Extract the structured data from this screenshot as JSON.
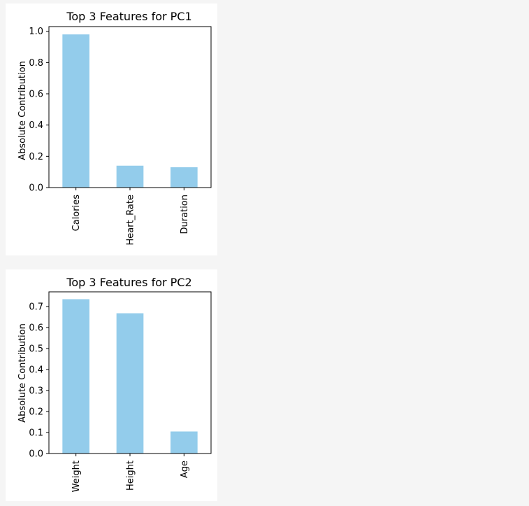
{
  "chart_data": [
    {
      "type": "bar",
      "title": "Top 3 Features for PC1",
      "ylabel": "Absolute Contribution",
      "xlabel": "",
      "categories": [
        "Calories",
        "Heart_Rate",
        "Duration"
      ],
      "values": [
        0.98,
        0.14,
        0.13
      ],
      "ylim": [
        0,
        1.03
      ],
      "yticks": [
        "0.0",
        "0.2",
        "0.4",
        "0.6",
        "0.8",
        "1.0"
      ],
      "ytick_values": [
        0,
        0.2,
        0.4,
        0.6,
        0.8,
        1.0
      ],
      "grid": false,
      "bar_color": "#93cceb"
    },
    {
      "type": "bar",
      "title": "Top 3 Features for PC2",
      "ylabel": "Absolute Contribution",
      "xlabel": "",
      "categories": [
        "Weight",
        "Height",
        "Age"
      ],
      "values": [
        0.735,
        0.668,
        0.105
      ],
      "ylim": [
        0,
        0.77
      ],
      "yticks": [
        "0.0",
        "0.1",
        "0.2",
        "0.3",
        "0.4",
        "0.5",
        "0.6",
        "0.7"
      ],
      "ytick_values": [
        0,
        0.1,
        0.2,
        0.3,
        0.4,
        0.5,
        0.6,
        0.7
      ],
      "grid": false,
      "bar_color": "#93cceb"
    }
  ]
}
